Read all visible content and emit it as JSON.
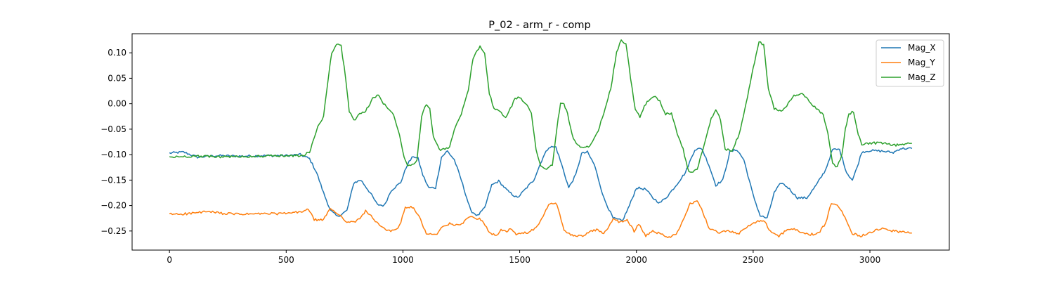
{
  "chart_data": {
    "type": "line",
    "title": "P_02 - arm_r - comp",
    "xlabel": "",
    "ylabel": "",
    "xlim": [
      -160,
      3340
    ],
    "ylim": [
      -0.2875,
      0.1375
    ],
    "x_ticks": [
      0,
      500,
      1000,
      1500,
      2000,
      2500,
      3000
    ],
    "y_ticks": [
      -0.25,
      -0.2,
      -0.15,
      -0.1,
      -0.05,
      0.0,
      0.05,
      0.1
    ],
    "y_tick_labels": [
      "−0.25",
      "−0.20",
      "−0.15",
      "−0.10",
      "−0.05",
      "0.00",
      "0.05",
      "0.10"
    ],
    "x_tick_labels": [
      "0",
      "500",
      "1000",
      "1500",
      "2000",
      "2500",
      "3000"
    ],
    "grid": false,
    "legend_position": "top-right",
    "series": [
      {
        "name": "Mag_X",
        "color": "#1f77b4",
        "points": [
          [
            0,
            -0.097
          ],
          [
            60,
            -0.095
          ],
          [
            120,
            -0.105
          ],
          [
            200,
            -0.102
          ],
          [
            300,
            -0.103
          ],
          [
            400,
            -0.102
          ],
          [
            500,
            -0.102
          ],
          [
            560,
            -0.1
          ],
          [
            600,
            -0.108
          ],
          [
            630,
            -0.135
          ],
          [
            660,
            -0.175
          ],
          [
            690,
            -0.21
          ],
          [
            720,
            -0.222
          ],
          [
            760,
            -0.21
          ],
          [
            790,
            -0.155
          ],
          [
            820,
            -0.15
          ],
          [
            860,
            -0.175
          ],
          [
            890,
            -0.198
          ],
          [
            920,
            -0.2
          ],
          [
            950,
            -0.17
          ],
          [
            990,
            -0.155
          ],
          [
            1020,
            -0.118
          ],
          [
            1045,
            -0.103
          ],
          [
            1065,
            -0.108
          ],
          [
            1085,
            -0.14
          ],
          [
            1110,
            -0.165
          ],
          [
            1140,
            -0.165
          ],
          [
            1165,
            -0.105
          ],
          [
            1190,
            -0.093
          ],
          [
            1220,
            -0.11
          ],
          [
            1250,
            -0.15
          ],
          [
            1290,
            -0.21
          ],
          [
            1320,
            -0.22
          ],
          [
            1350,
            -0.205
          ],
          [
            1380,
            -0.16
          ],
          [
            1410,
            -0.152
          ],
          [
            1450,
            -0.172
          ],
          [
            1490,
            -0.185
          ],
          [
            1520,
            -0.17
          ],
          [
            1560,
            -0.15
          ],
          [
            1600,
            -0.105
          ],
          [
            1625,
            -0.085
          ],
          [
            1655,
            -0.085
          ],
          [
            1680,
            -0.12
          ],
          [
            1710,
            -0.165
          ],
          [
            1740,
            -0.14
          ],
          [
            1765,
            -0.098
          ],
          [
            1790,
            -0.095
          ],
          [
            1820,
            -0.12
          ],
          [
            1860,
            -0.185
          ],
          [
            1900,
            -0.225
          ],
          [
            1940,
            -0.23
          ],
          [
            1970,
            -0.2
          ],
          [
            2000,
            -0.165
          ],
          [
            2040,
            -0.168
          ],
          [
            2070,
            -0.185
          ],
          [
            2100,
            -0.195
          ],
          [
            2130,
            -0.183
          ],
          [
            2170,
            -0.16
          ],
          [
            2210,
            -0.135
          ],
          [
            2250,
            -0.09
          ],
          [
            2280,
            -0.088
          ],
          [
            2310,
            -0.12
          ],
          [
            2340,
            -0.16
          ],
          [
            2370,
            -0.15
          ],
          [
            2400,
            -0.095
          ],
          [
            2430,
            -0.09
          ],
          [
            2460,
            -0.11
          ],
          [
            2500,
            -0.18
          ],
          [
            2530,
            -0.22
          ],
          [
            2560,
            -0.225
          ],
          [
            2590,
            -0.175
          ],
          [
            2620,
            -0.155
          ],
          [
            2650,
            -0.165
          ],
          [
            2690,
            -0.185
          ],
          [
            2730,
            -0.185
          ],
          [
            2770,
            -0.16
          ],
          [
            2810,
            -0.13
          ],
          [
            2840,
            -0.09
          ],
          [
            2870,
            -0.09
          ],
          [
            2900,
            -0.135
          ],
          [
            2925,
            -0.15
          ],
          [
            2945,
            -0.125
          ],
          [
            2965,
            -0.095
          ],
          [
            3000,
            -0.092
          ],
          [
            3050,
            -0.093
          ],
          [
            3100,
            -0.096
          ],
          [
            3130,
            -0.088
          ],
          [
            3180,
            -0.088
          ]
        ]
      },
      {
        "name": "Mag_Y",
        "color": "#ff7f0e",
        "points": [
          [
            0,
            -0.217
          ],
          [
            80,
            -0.216
          ],
          [
            160,
            -0.212
          ],
          [
            240,
            -0.216
          ],
          [
            320,
            -0.217
          ],
          [
            400,
            -0.216
          ],
          [
            480,
            -0.216
          ],
          [
            560,
            -0.213
          ],
          [
            595,
            -0.207
          ],
          [
            620,
            -0.228
          ],
          [
            660,
            -0.228
          ],
          [
            690,
            -0.205
          ],
          [
            715,
            -0.215
          ],
          [
            740,
            -0.222
          ],
          [
            760,
            -0.233
          ],
          [
            790,
            -0.233
          ],
          [
            815,
            -0.226
          ],
          [
            840,
            -0.21
          ],
          [
            870,
            -0.224
          ],
          [
            900,
            -0.24
          ],
          [
            930,
            -0.248
          ],
          [
            960,
            -0.25
          ],
          [
            985,
            -0.24
          ],
          [
            1010,
            -0.205
          ],
          [
            1040,
            -0.203
          ],
          [
            1070,
            -0.222
          ],
          [
            1100,
            -0.255
          ],
          [
            1140,
            -0.258
          ],
          [
            1170,
            -0.242
          ],
          [
            1200,
            -0.235
          ],
          [
            1240,
            -0.24
          ],
          [
            1270,
            -0.228
          ],
          [
            1290,
            -0.22
          ],
          [
            1310,
            -0.225
          ],
          [
            1340,
            -0.228
          ],
          [
            1370,
            -0.252
          ],
          [
            1400,
            -0.26
          ],
          [
            1420,
            -0.248
          ],
          [
            1445,
            -0.253
          ],
          [
            1460,
            -0.245
          ],
          [
            1485,
            -0.257
          ],
          [
            1510,
            -0.255
          ],
          [
            1540,
            -0.252
          ],
          [
            1570,
            -0.245
          ],
          [
            1600,
            -0.22
          ],
          [
            1630,
            -0.195
          ],
          [
            1660,
            -0.198
          ],
          [
            1690,
            -0.25
          ],
          [
            1730,
            -0.26
          ],
          [
            1770,
            -0.26
          ],
          [
            1800,
            -0.25
          ],
          [
            1830,
            -0.248
          ],
          [
            1860,
            -0.255
          ],
          [
            1900,
            -0.228
          ],
          [
            1930,
            -0.232
          ],
          [
            1960,
            -0.228
          ],
          [
            1990,
            -0.25
          ],
          [
            2010,
            -0.237
          ],
          [
            2040,
            -0.26
          ],
          [
            2070,
            -0.25
          ],
          [
            2100,
            -0.255
          ],
          [
            2140,
            -0.262
          ],
          [
            2170,
            -0.255
          ],
          [
            2200,
            -0.23
          ],
          [
            2230,
            -0.195
          ],
          [
            2260,
            -0.192
          ],
          [
            2285,
            -0.213
          ],
          [
            2310,
            -0.245
          ],
          [
            2350,
            -0.253
          ],
          [
            2400,
            -0.25
          ],
          [
            2440,
            -0.255
          ],
          [
            2480,
            -0.24
          ],
          [
            2520,
            -0.23
          ],
          [
            2550,
            -0.232
          ],
          [
            2580,
            -0.255
          ],
          [
            2610,
            -0.26
          ],
          [
            2640,
            -0.25
          ],
          [
            2670,
            -0.245
          ],
          [
            2700,
            -0.252
          ],
          [
            2740,
            -0.257
          ],
          [
            2780,
            -0.255
          ],
          [
            2810,
            -0.235
          ],
          [
            2835,
            -0.195
          ],
          [
            2860,
            -0.197
          ],
          [
            2880,
            -0.21
          ],
          [
            2900,
            -0.23
          ],
          [
            2925,
            -0.255
          ],
          [
            2960,
            -0.26
          ],
          [
            3000,
            -0.252
          ],
          [
            3060,
            -0.245
          ],
          [
            3100,
            -0.25
          ],
          [
            3140,
            -0.252
          ],
          [
            3180,
            -0.254
          ]
        ]
      },
      {
        "name": "Mag_Z",
        "color": "#2ca02c",
        "points": [
          [
            0,
            -0.105
          ],
          [
            100,
            -0.103
          ],
          [
            200,
            -0.104
          ],
          [
            300,
            -0.104
          ],
          [
            400,
            -0.103
          ],
          [
            500,
            -0.102
          ],
          [
            570,
            -0.102
          ],
          [
            600,
            -0.095
          ],
          [
            615,
            -0.075
          ],
          [
            635,
            -0.045
          ],
          [
            660,
            -0.025
          ],
          [
            680,
            0.05
          ],
          [
            695,
            0.1
          ],
          [
            715,
            0.117
          ],
          [
            735,
            0.113
          ],
          [
            755,
            0.05
          ],
          [
            770,
            -0.015
          ],
          [
            790,
            -0.033
          ],
          [
            815,
            -0.02
          ],
          [
            840,
            -0.015
          ],
          [
            870,
            0.01
          ],
          [
            895,
            0.018
          ],
          [
            910,
            0.005
          ],
          [
            935,
            -0.01
          ],
          [
            960,
            -0.02
          ],
          [
            985,
            -0.06
          ],
          [
            1005,
            -0.105
          ],
          [
            1020,
            -0.12
          ],
          [
            1040,
            -0.12
          ],
          [
            1060,
            -0.11
          ],
          [
            1080,
            -0.025
          ],
          [
            1100,
            0.0
          ],
          [
            1115,
            -0.01
          ],
          [
            1130,
            -0.065
          ],
          [
            1155,
            -0.09
          ],
          [
            1180,
            -0.09
          ],
          [
            1200,
            -0.085
          ],
          [
            1220,
            -0.05
          ],
          [
            1250,
            -0.02
          ],
          [
            1280,
            0.025
          ],
          [
            1300,
            0.09
          ],
          [
            1330,
            0.113
          ],
          [
            1350,
            0.1
          ],
          [
            1370,
            0.02
          ],
          [
            1390,
            -0.01
          ],
          [
            1415,
            -0.015
          ],
          [
            1440,
            -0.028
          ],
          [
            1460,
            -0.01
          ],
          [
            1480,
            0.01
          ],
          [
            1500,
            0.012
          ],
          [
            1530,
            0.0
          ],
          [
            1550,
            -0.02
          ],
          [
            1570,
            -0.09
          ],
          [
            1590,
            -0.12
          ],
          [
            1615,
            -0.13
          ],
          [
            1640,
            -0.12
          ],
          [
            1660,
            -0.045
          ],
          [
            1675,
            0.0
          ],
          [
            1690,
            0.0
          ],
          [
            1705,
            -0.02
          ],
          [
            1730,
            -0.07
          ],
          [
            1760,
            -0.087
          ],
          [
            1800,
            -0.085
          ],
          [
            1830,
            -0.06
          ],
          [
            1860,
            -0.02
          ],
          [
            1890,
            0.03
          ],
          [
            1915,
            0.1
          ],
          [
            1935,
            0.125
          ],
          [
            1955,
            0.118
          ],
          [
            1975,
            0.05
          ],
          [
            1995,
            -0.01
          ],
          [
            2015,
            -0.025
          ],
          [
            2040,
            0.0
          ],
          [
            2075,
            0.015
          ],
          [
            2100,
            0.005
          ],
          [
            2125,
            -0.02
          ],
          [
            2150,
            -0.02
          ],
          [
            2175,
            -0.06
          ],
          [
            2200,
            -0.09
          ],
          [
            2225,
            -0.135
          ],
          [
            2260,
            -0.13
          ],
          [
            2290,
            -0.08
          ],
          [
            2320,
            -0.03
          ],
          [
            2340,
            -0.01
          ],
          [
            2360,
            -0.03
          ],
          [
            2380,
            -0.09
          ],
          [
            2410,
            -0.092
          ],
          [
            2440,
            -0.06
          ],
          [
            2470,
            0.0
          ],
          [
            2500,
            0.07
          ],
          [
            2525,
            0.122
          ],
          [
            2545,
            0.115
          ],
          [
            2565,
            0.03
          ],
          [
            2590,
            -0.01
          ],
          [
            2620,
            -0.015
          ],
          [
            2650,
            0.0
          ],
          [
            2675,
            0.015
          ],
          [
            2710,
            0.02
          ],
          [
            2740,
            0.005
          ],
          [
            2770,
            -0.01
          ],
          [
            2800,
            -0.02
          ],
          [
            2820,
            -0.06
          ],
          [
            2840,
            -0.115
          ],
          [
            2860,
            -0.125
          ],
          [
            2880,
            -0.1
          ],
          [
            2895,
            -0.05
          ],
          [
            2910,
            -0.02
          ],
          [
            2930,
            -0.015
          ],
          [
            2950,
            -0.06
          ],
          [
            2965,
            -0.08
          ],
          [
            3000,
            -0.077
          ],
          [
            3060,
            -0.078
          ],
          [
            3100,
            -0.082
          ],
          [
            3140,
            -0.08
          ],
          [
            3180,
            -0.078
          ]
        ]
      }
    ]
  }
}
